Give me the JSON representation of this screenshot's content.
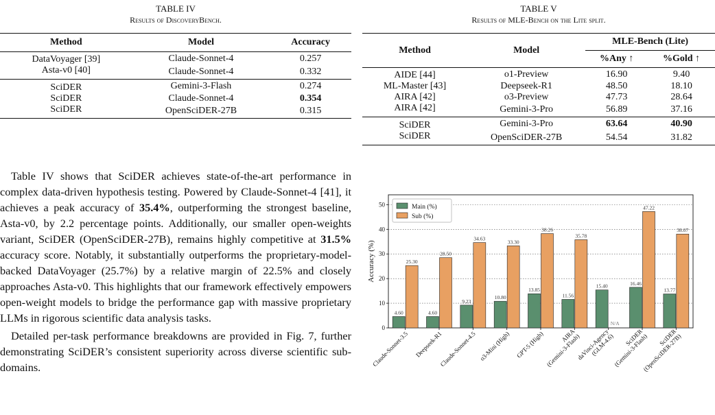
{
  "table4": {
    "caption": "TABLE IV",
    "subcaption": "Results of DiscoveryBench.",
    "headers": [
      "Method",
      "Model",
      "Accuracy"
    ],
    "group1": [
      [
        "DataVoyager [39]",
        "Claude-Sonnet-4",
        "0.257"
      ],
      [
        "Asta-v0 [40]",
        "Claude-Sonnet-4",
        "0.332"
      ]
    ],
    "group2": [
      [
        "SciDER",
        "Gemini-3-Flash",
        "0.274"
      ],
      [
        "SciDER",
        "Claude-Sonnet-4",
        "0.354"
      ],
      [
        "SciDER",
        "OpenSciDER-27B",
        "0.315"
      ]
    ]
  },
  "table5": {
    "caption": "TABLE V",
    "subcaption": "Results of MLE-Bench on the Lite split.",
    "headers": [
      "Method",
      "Model",
      "MLE-Bench (Lite)",
      "%Any ↑",
      "%Gold ↑"
    ],
    "group1": [
      [
        "AIDE [44]",
        "o1-Preview",
        "16.90",
        "9.40"
      ],
      [
        "ML-Master [43]",
        "Deepseek-R1",
        "48.50",
        "18.10"
      ],
      [
        "AIRA [42]",
        "o3-Preview",
        "47.73",
        "28.64"
      ],
      [
        "AIRA [42]",
        "Gemini-3-Pro",
        "56.89",
        "37.16"
      ]
    ],
    "group2": [
      [
        "SciDER",
        "Gemini-3-Pro",
        "63.64",
        "40.90"
      ],
      [
        "SciDER",
        "OpenSciDER-27B",
        "54.54",
        "31.82"
      ]
    ]
  },
  "body_text": {
    "p1_a": "Table IV shows that SciDER achieves state-of-the-art performance in complex data-driven hypothesis testing. Powered by Claude-Sonnet-4 [41], it achieves a peak accuracy of ",
    "p1_b": "35.4%",
    "p1_c": ", outperforming the strongest baseline, Asta-v0, by 2.2 percentage points. Additionally, our smaller open-weights variant, SciDER (OpenSciDER-27B), remains highly competitive at ",
    "p1_d": "31.5%",
    "p1_e": " accuracy score. Notably, it substantially outperforms the proprietary-model-backed DataVoyager (25.7%) by a relative margin of 22.5% and closely approaches Asta-v0. This highlights that our framework effectively empowers open-weight models to bridge the performance gap with massive proprietary LLMs in rigorous scientific data analysis tasks.",
    "p2": "Detailed per-task performance breakdowns are provided in Fig. 7, further demonstrating SciDER’s consistent superiority across diverse scientific sub-domains."
  },
  "chart_data": {
    "type": "bar",
    "categories": [
      "Claude-Sonnet-3.5",
      "Deepseek-R1",
      "Claude-Sonnet-4.5",
      "o3-Mini (High)",
      "GPT-5 (High)",
      "AIRA\n(Gemini-3-Flash)",
      "daVinci-Agency\n(GLM-4.6)",
      "SciDER\n(Gemini-3-Flash)",
      "SciDER\n(OpenSciDER-27B)"
    ],
    "series": [
      {
        "name": "Main (%)",
        "color": "#5a8f6e",
        "values": [
          4.6,
          4.6,
          9.23,
          10.8,
          13.85,
          11.56,
          15.4,
          16.46,
          13.77
        ],
        "labels": [
          "4.60",
          "4.60",
          "9.23",
          "10.80",
          "13.85",
          "11.56",
          "15.40",
          "16.46",
          "13.77"
        ]
      },
      {
        "name": "Sub (%)",
        "color": "#e8a062",
        "values": [
          25.3,
          28.5,
          34.63,
          33.3,
          38.26,
          35.78,
          null,
          47.22,
          38.07
        ],
        "labels": [
          "25.30",
          "28.50",
          "34.63",
          "33.30",
          "38.26",
          "35.78",
          "N/A",
          "47.22",
          "38.07"
        ]
      }
    ],
    "ylabel": "Accuracy (%)",
    "yticks": [
      "0",
      "10",
      "20",
      "30",
      "40",
      "50"
    ],
    "ylim": [
      0,
      54
    ],
    "grid": true,
    "legend": "top-left"
  }
}
